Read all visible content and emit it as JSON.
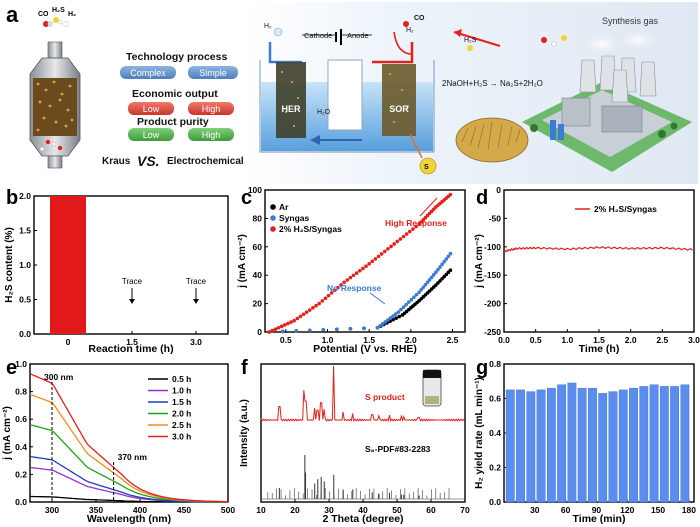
{
  "panel_a": {
    "label": "a",
    "left_labels": {
      "gases": [
        "CO",
        "H₂S",
        "H₂"
      ],
      "technology_title": "Technology process",
      "technology_opts": [
        "Complex",
        "Simple"
      ],
      "economic_title": "Economic output",
      "economic_opts": [
        "Low",
        "High"
      ],
      "purity_title": "Product purity",
      "purity_opts": [
        "Low",
        "High"
      ],
      "vs_left": "Kraus",
      "vs_mid": "VS.",
      "vs_right": "Electrochemical"
    },
    "cell": {
      "h2_top": "H₂",
      "cathode": "Cathode",
      "anode": "Anode",
      "co": "CO",
      "h2_right": "H₂",
      "h2s": "H₂S",
      "her": "HER",
      "sor": "SOR",
      "h2o": "H₂O",
      "s_label": "S"
    },
    "reaction": "2NaOH+H₂S → Na₂S+2H₂O",
    "synthesis_gas": "Synthesis gas"
  },
  "colors": {
    "red": "#e3201b",
    "blue": "#3a7bd5",
    "black": "#000000",
    "bar_blue": "#5b8def",
    "bar_red": "#e31a1c"
  },
  "charts": {
    "b": {
      "label": "b",
      "chart_data": {
        "type": "bar",
        "categories": [
          "0",
          "1.5",
          "3.0"
        ],
        "values": [
          2.0,
          0,
          0
        ],
        "annotations": [
          "Trace",
          "Trace"
        ],
        "xlabel": "Reaction time (h)",
        "ylabel": "H₂S content (%)",
        "ylim": [
          0,
          2.0
        ],
        "yticks": [
          "0.0",
          "0.5",
          "1.0",
          "1.5",
          "2.0"
        ]
      }
    },
    "c": {
      "label": "c",
      "chart_data": {
        "type": "scatter",
        "xlabel": "Potential (V vs. RHE)",
        "ylabel": "j (mA cm⁻²)",
        "xlim": [
          0.25,
          2.65
        ],
        "ylim": [
          0,
          100
        ],
        "xticks": [
          "0.5",
          "1.0",
          "1.5",
          "2.0",
          "2.5"
        ],
        "yticks": [
          "0",
          "20",
          "40",
          "60",
          "80",
          "100"
        ],
        "legend": [
          "Ar",
          "Syngas",
          "2% H₂S/Syngas"
        ],
        "annotations": [
          "High Response",
          "No Response"
        ],
        "series": [
          {
            "name": "Ar",
            "color": "#000000",
            "x": [
              0.3,
              1.6,
              1.9,
              2.1,
              2.3,
              2.5
            ],
            "y": [
              0,
              3,
              12,
              22,
              33,
              45
            ]
          },
          {
            "name": "Syngas",
            "color": "#3a7bd5",
            "x": [
              0.3,
              1.6,
              1.85,
              2.1,
              2.3,
              2.5
            ],
            "y": [
              0,
              3,
              14,
              28,
              42,
              57
            ]
          },
          {
            "name": "2% H₂S/Syngas",
            "color": "#e3201b",
            "x": [
              0.3,
              0.6,
              0.9,
              1.2,
              1.5,
              1.8,
              2.1,
              2.3,
              2.5
            ],
            "y": [
              0,
              8,
              20,
              35,
              48,
              62,
              76,
              88,
              98
            ]
          }
        ]
      }
    },
    "d": {
      "label": "d",
      "chart_data": {
        "type": "line",
        "xlabel": "Time (h)",
        "ylabel": "j (mA cm⁻²)",
        "xlim": [
          0,
          3.0
        ],
        "ylim": [
          -250,
          0
        ],
        "xticks": [
          "0.0",
          "0.5",
          "1.0",
          "1.5",
          "2.0",
          "2.5",
          "3.0"
        ],
        "yticks": [
          "0",
          "-50",
          "-100",
          "-150",
          "-200",
          "-250"
        ],
        "legend": [
          "2% H₂S/Syngas"
        ],
        "series": [
          {
            "name": "2% H₂S/Syngas",
            "color": "#e3201b",
            "x": [
              0,
              0.2,
              0.5,
              1.0,
              1.5,
              2.0,
              2.5,
              3.0
            ],
            "y": [
              -108,
              -103,
              -102,
              -104,
              -101,
              -103,
              -102,
              -105
            ]
          }
        ]
      }
    },
    "e": {
      "label": "e",
      "chart_data": {
        "type": "line",
        "xlabel": "Wavelength (nm)",
        "ylabel": "j (mA cm⁻²)",
        "xlim": [
          275,
          500
        ],
        "ylim": [
          0,
          1.0
        ],
        "xticks": [
          "300",
          "350",
          "400",
          "450",
          "500"
        ],
        "yticks": [
          "0.0",
          "0.2",
          "0.4",
          "0.6",
          "0.8",
          "1.0"
        ],
        "annotations": [
          "300 nm",
          "370 nm"
        ],
        "series": [
          {
            "name": "0.5 h",
            "color": "#000000",
            "peak": 0.04
          },
          {
            "name": "1.0 h",
            "color": "#9b30c8",
            "peak": 0.25
          },
          {
            "name": "1.5 h",
            "color": "#1f3fbf",
            "peak": 0.33
          },
          {
            "name": "2.0 h",
            "color": "#1aa51a",
            "peak": 0.56
          },
          {
            "name": "2.5 h",
            "color": "#f08c1a",
            "peak": 0.78
          },
          {
            "name": "3.0 h",
            "color": "#e3201b",
            "peak": 0.93
          }
        ]
      }
    },
    "f": {
      "label": "f",
      "chart_data": {
        "type": "line",
        "xlabel": "2 Theta (degree)",
        "ylabel": "Intensity (a.u.)",
        "xlim": [
          10,
          70
        ],
        "xticks": [
          "10",
          "20",
          "30",
          "40",
          "50",
          "60",
          "70"
        ],
        "legend": [
          "S product",
          "S₈-PDF#83-2283"
        ],
        "series": [
          {
            "name": "S product",
            "color": "#e3201b",
            "peaks_x": [
              15.4,
              22.9,
              23.1,
              25.8,
              26.7,
              27.7,
              28.6,
              31.4,
              34.2,
              37.0,
              42.7,
              44.7,
              47.8,
              51.3,
              52.0,
              56.5
            ],
            "peaks_h": [
              0.25,
              0.55,
              0.35,
              0.22,
              0.18,
              0.32,
              0.2,
              1.0,
              0.15,
              0.12,
              0.1,
              0.08,
              0.09,
              0.07,
              0.06,
              0.05
            ]
          },
          {
            "name": "S₈-PDF#83-2283",
            "color": "#333333",
            "peaks_x": [
              15.4,
              22.9,
              23.1,
              25.8,
              26.7,
              27.7,
              28.6,
              31.4,
              34.2,
              37.0,
              42.7,
              44.7,
              47.8,
              51.3,
              52.0,
              56.5
            ],
            "peaks_h": [
              0.25,
              1.0,
              0.6,
              0.35,
              0.45,
              0.5,
              0.4,
              0.55,
              0.2,
              0.22,
              0.15,
              0.12,
              0.14,
              0.1,
              0.1,
              0.08
            ]
          }
        ]
      }
    },
    "g": {
      "label": "g",
      "chart_data": {
        "type": "bar",
        "xlabel": "Time (min)",
        "ylabel": "H₂ yield rate (mL min⁻¹)",
        "xlim": [
          0,
          185
        ],
        "ylim": [
          0,
          0.8
        ],
        "xticks": [
          "30",
          "60",
          "90",
          "120",
          "150",
          "180"
        ],
        "yticks": [
          "0.0",
          "0.2",
          "0.4",
          "0.6",
          "0.8"
        ],
        "x": [
          10,
          20,
          30,
          40,
          50,
          60,
          70,
          80,
          90,
          100,
          110,
          120,
          130,
          140,
          150,
          160,
          170,
          180
        ],
        "values": [
          0.65,
          0.65,
          0.64,
          0.65,
          0.66,
          0.68,
          0.69,
          0.66,
          0.66,
          0.63,
          0.64,
          0.65,
          0.66,
          0.67,
          0.68,
          0.67,
          0.67,
          0.68
        ]
      }
    }
  }
}
